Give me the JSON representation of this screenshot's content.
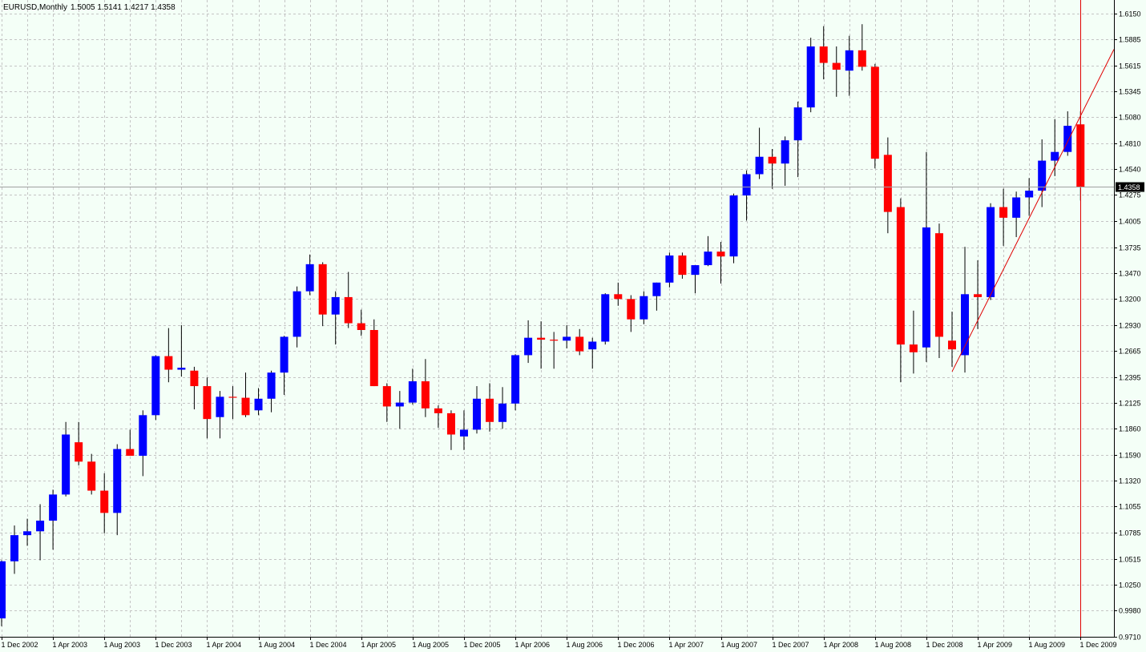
{
  "header": {
    "symbol": "EURUSD,Monthly",
    "ohlc": "1.5005 1.5141 1.4217 1.4358"
  },
  "price_label": "1.4358",
  "colors": {
    "background": "#f4fff7",
    "grid": "#c4c4c4",
    "bull": "#0000ff",
    "bear": "#ff0000",
    "wick": "#000000",
    "trendline": "#e00000",
    "marker_line": "#e00000",
    "price_box_bg": "#000000",
    "price_box_fg": "#ffffff"
  },
  "chart_data": {
    "type": "candlestick",
    "symbol": "EURUSD",
    "timeframe": "Monthly",
    "ylim": [
      0.971,
      1.629
    ],
    "grid": true,
    "y_ticks": [
      "1.6150",
      "1.5885",
      "1.5615",
      "1.5345",
      "1.5080",
      "1.4810",
      "1.4540",
      "1.4275",
      "1.4005",
      "1.3735",
      "1.3470",
      "1.3200",
      "1.2930",
      "1.2665",
      "1.2395",
      "1.2125",
      "1.1860",
      "1.1590",
      "1.1320",
      "1.1055",
      "1.0785",
      "1.0515",
      "1.0250",
      "0.9980",
      "0.9710"
    ],
    "x_labels": [
      "1 Dec 2002",
      "1 Apr 2003",
      "1 Aug 2003",
      "1 Dec 2003",
      "1 Apr 2004",
      "1 Aug 2004",
      "1 Dec 2004",
      "1 Apr 2005",
      "1 Aug 2005",
      "1 Dec 2005",
      "1 Apr 2006",
      "1 Aug 2006",
      "1 Dec 2006",
      "1 Apr 2007",
      "1 Aug 2007",
      "1 Dec 2007",
      "1 Apr 2008",
      "1 Aug 2008",
      "1 Dec 2008",
      "1 Apr 2009",
      "1 Aug 2009",
      "1 Dec 2009"
    ],
    "last_price": 1.4358,
    "candles": [
      {
        "d": "2002-12",
        "o": 0.99,
        "h": 1.05,
        "l": 0.982,
        "c": 1.049
      },
      {
        "d": "2003-01",
        "o": 1.049,
        "h": 1.086,
        "l": 1.036,
        "c": 1.076
      },
      {
        "d": "2003-02",
        "o": 1.076,
        "h": 1.093,
        "l": 1.065,
        "c": 1.08
      },
      {
        "d": "2003-03",
        "o": 1.08,
        "h": 1.108,
        "l": 1.05,
        "c": 1.091
      },
      {
        "d": "2003-04",
        "o": 1.091,
        "h": 1.123,
        "l": 1.061,
        "c": 1.118
      },
      {
        "d": "2003-05",
        "o": 1.118,
        "h": 1.193,
        "l": 1.116,
        "c": 1.18
      },
      {
        "d": "2003-06",
        "o": 1.172,
        "h": 1.193,
        "l": 1.148,
        "c": 1.152
      },
      {
        "d": "2003-07",
        "o": 1.152,
        "h": 1.16,
        "l": 1.118,
        "c": 1.122
      },
      {
        "d": "2003-08",
        "o": 1.122,
        "h": 1.14,
        "l": 1.078,
        "c": 1.099
      },
      {
        "d": "2003-09",
        "o": 1.099,
        "h": 1.17,
        "l": 1.076,
        "c": 1.165
      },
      {
        "d": "2003-10",
        "o": 1.165,
        "h": 1.185,
        "l": 1.158,
        "c": 1.158
      },
      {
        "d": "2003-11",
        "o": 1.158,
        "h": 1.205,
        "l": 1.137,
        "c": 1.2
      },
      {
        "d": "2003-12",
        "o": 1.2,
        "h": 1.262,
        "l": 1.195,
        "c": 1.261
      },
      {
        "d": "2004-01",
        "o": 1.261,
        "h": 1.29,
        "l": 1.234,
        "c": 1.247
      },
      {
        "d": "2004-02",
        "o": 1.247,
        "h": 1.293,
        "l": 1.24,
        "c": 1.249
      },
      {
        "d": "2004-03",
        "o": 1.246,
        "h": 1.25,
        "l": 1.206,
        "c": 1.23
      },
      {
        "d": "2004-04",
        "o": 1.23,
        "h": 1.239,
        "l": 1.176,
        "c": 1.196
      },
      {
        "d": "2004-05",
        "o": 1.198,
        "h": 1.225,
        "l": 1.176,
        "c": 1.219
      },
      {
        "d": "2004-06",
        "o": 1.219,
        "h": 1.23,
        "l": 1.196,
        "c": 1.218
      },
      {
        "d": "2004-07",
        "o": 1.218,
        "h": 1.244,
        "l": 1.198,
        "c": 1.2
      },
      {
        "d": "2004-08",
        "o": 1.205,
        "h": 1.228,
        "l": 1.2,
        "c": 1.217
      },
      {
        "d": "2004-09",
        "o": 1.217,
        "h": 1.246,
        "l": 1.203,
        "c": 1.244
      },
      {
        "d": "2004-10",
        "o": 1.244,
        "h": 1.282,
        "l": 1.221,
        "c": 1.281
      },
      {
        "d": "2004-11",
        "o": 1.281,
        "h": 1.333,
        "l": 1.27,
        "c": 1.328
      },
      {
        "d": "2004-12",
        "o": 1.328,
        "h": 1.366,
        "l": 1.324,
        "c": 1.356
      },
      {
        "d": "2005-01",
        "o": 1.356,
        "h": 1.358,
        "l": 1.292,
        "c": 1.304
      },
      {
        "d": "2005-02",
        "o": 1.304,
        "h": 1.328,
        "l": 1.273,
        "c": 1.322
      },
      {
        "d": "2005-03",
        "o": 1.322,
        "h": 1.348,
        "l": 1.29,
        "c": 1.295
      },
      {
        "d": "2005-04",
        "o": 1.295,
        "h": 1.309,
        "l": 1.282,
        "c": 1.288
      },
      {
        "d": "2005-05",
        "o": 1.288,
        "h": 1.299,
        "l": 1.23,
        "c": 1.23
      },
      {
        "d": "2005-06",
        "o": 1.23,
        "h": 1.233,
        "l": 1.193,
        "c": 1.209
      },
      {
        "d": "2005-07",
        "o": 1.209,
        "h": 1.225,
        "l": 1.186,
        "c": 1.213
      },
      {
        "d": "2005-08",
        "o": 1.213,
        "h": 1.248,
        "l": 1.211,
        "c": 1.235
      },
      {
        "d": "2005-09",
        "o": 1.235,
        "h": 1.258,
        "l": 1.198,
        "c": 1.207
      },
      {
        "d": "2005-10",
        "o": 1.207,
        "h": 1.21,
        "l": 1.187,
        "c": 1.202
      },
      {
        "d": "2005-11",
        "o": 1.202,
        "h": 1.205,
        "l": 1.164,
        "c": 1.18
      },
      {
        "d": "2005-12",
        "o": 1.178,
        "h": 1.205,
        "l": 1.164,
        "c": 1.185
      },
      {
        "d": "2006-01",
        "o": 1.185,
        "h": 1.23,
        "l": 1.181,
        "c": 1.217
      },
      {
        "d": "2006-02",
        "o": 1.217,
        "h": 1.233,
        "l": 1.183,
        "c": 1.193
      },
      {
        "d": "2006-03",
        "o": 1.193,
        "h": 1.229,
        "l": 1.186,
        "c": 1.212
      },
      {
        "d": "2006-04",
        "o": 1.212,
        "h": 1.263,
        "l": 1.205,
        "c": 1.262
      },
      {
        "d": "2006-05",
        "o": 1.262,
        "h": 1.298,
        "l": 1.254,
        "c": 1.28
      },
      {
        "d": "2006-06",
        "o": 1.28,
        "h": 1.297,
        "l": 1.248,
        "c": 1.278
      },
      {
        "d": "2006-07",
        "o": 1.278,
        "h": 1.286,
        "l": 1.248,
        "c": 1.277
      },
      {
        "d": "2006-08",
        "o": 1.277,
        "h": 1.293,
        "l": 1.269,
        "c": 1.281
      },
      {
        "d": "2006-09",
        "o": 1.281,
        "h": 1.289,
        "l": 1.262,
        "c": 1.266
      },
      {
        "d": "2006-10",
        "o": 1.268,
        "h": 1.28,
        "l": 1.248,
        "c": 1.276
      },
      {
        "d": "2006-11",
        "o": 1.276,
        "h": 1.326,
        "l": 1.273,
        "c": 1.325
      },
      {
        "d": "2006-12",
        "o": 1.325,
        "h": 1.337,
        "l": 1.313,
        "c": 1.32
      },
      {
        "d": "2007-01",
        "o": 1.32,
        "h": 1.324,
        "l": 1.286,
        "c": 1.299
      },
      {
        "d": "2007-02",
        "o": 1.299,
        "h": 1.328,
        "l": 1.294,
        "c": 1.323
      },
      {
        "d": "2007-03",
        "o": 1.323,
        "h": 1.337,
        "l": 1.308,
        "c": 1.337
      },
      {
        "d": "2007-04",
        "o": 1.337,
        "h": 1.368,
        "l": 1.332,
        "c": 1.365
      },
      {
        "d": "2007-05",
        "o": 1.365,
        "h": 1.368,
        "l": 1.341,
        "c": 1.345
      },
      {
        "d": "2007-06",
        "o": 1.345,
        "h": 1.355,
        "l": 1.326,
        "c": 1.355
      },
      {
        "d": "2007-07",
        "o": 1.355,
        "h": 1.385,
        "l": 1.354,
        "c": 1.369
      },
      {
        "d": "2007-08",
        "o": 1.369,
        "h": 1.379,
        "l": 1.336,
        "c": 1.364
      },
      {
        "d": "2007-09",
        "o": 1.364,
        "h": 1.429,
        "l": 1.357,
        "c": 1.427
      },
      {
        "d": "2007-10",
        "o": 1.427,
        "h": 1.453,
        "l": 1.401,
        "c": 1.449
      },
      {
        "d": "2007-11",
        "o": 1.449,
        "h": 1.497,
        "l": 1.444,
        "c": 1.467
      },
      {
        "d": "2007-12",
        "o": 1.467,
        "h": 1.475,
        "l": 1.434,
        "c": 1.46
      },
      {
        "d": "2008-01",
        "o": 1.46,
        "h": 1.488,
        "l": 1.437,
        "c": 1.484
      },
      {
        "d": "2008-02",
        "o": 1.484,
        "h": 1.524,
        "l": 1.446,
        "c": 1.518
      },
      {
        "d": "2008-03",
        "o": 1.518,
        "h": 1.59,
        "l": 1.513,
        "c": 1.581
      },
      {
        "d": "2008-04",
        "o": 1.581,
        "h": 1.602,
        "l": 1.547,
        "c": 1.564
      },
      {
        "d": "2008-05",
        "o": 1.564,
        "h": 1.581,
        "l": 1.529,
        "c": 1.557
      },
      {
        "d": "2008-06",
        "o": 1.556,
        "h": 1.592,
        "l": 1.53,
        "c": 1.577
      },
      {
        "d": "2008-07",
        "o": 1.577,
        "h": 1.604,
        "l": 1.556,
        "c": 1.56
      },
      {
        "d": "2008-08",
        "o": 1.56,
        "h": 1.563,
        "l": 1.455,
        "c": 1.465
      },
      {
        "d": "2008-09",
        "o": 1.469,
        "h": 1.487,
        "l": 1.388,
        "c": 1.41
      },
      {
        "d": "2008-10",
        "o": 1.415,
        "h": 1.424,
        "l": 1.234,
        "c": 1.273
      },
      {
        "d": "2008-11",
        "o": 1.273,
        "h": 1.308,
        "l": 1.243,
        "c": 1.265
      },
      {
        "d": "2008-12",
        "o": 1.27,
        "h": 1.472,
        "l": 1.255,
        "c": 1.394
      },
      {
        "d": "2009-01",
        "o": 1.388,
        "h": 1.398,
        "l": 1.259,
        "c": 1.281
      },
      {
        "d": "2009-02",
        "o": 1.277,
        "h": 1.307,
        "l": 1.25,
        "c": 1.268
      },
      {
        "d": "2009-03",
        "o": 1.262,
        "h": 1.374,
        "l": 1.244,
        "c": 1.325
      },
      {
        "d": "2009-04",
        "o": 1.325,
        "h": 1.36,
        "l": 1.289,
        "c": 1.322
      },
      {
        "d": "2009-05",
        "o": 1.322,
        "h": 1.419,
        "l": 1.319,
        "c": 1.415
      },
      {
        "d": "2009-06",
        "o": 1.415,
        "h": 1.434,
        "l": 1.375,
        "c": 1.404
      },
      {
        "d": "2009-07",
        "o": 1.404,
        "h": 1.431,
        "l": 1.384,
        "c": 1.425
      },
      {
        "d": "2009-08",
        "o": 1.425,
        "h": 1.445,
        "l": 1.406,
        "c": 1.432
      },
      {
        "d": "2009-09",
        "o": 1.432,
        "h": 1.485,
        "l": 1.415,
        "c": 1.463
      },
      {
        "d": "2009-10",
        "o": 1.463,
        "h": 1.506,
        "l": 1.447,
        "c": 1.472
      },
      {
        "d": "2009-11",
        "o": 1.472,
        "h": 1.514,
        "l": 1.468,
        "c": 1.499
      },
      {
        "d": "2009-12",
        "o": 1.5005,
        "h": 1.5141,
        "l": 1.4217,
        "c": 1.4358
      }
    ],
    "trendline": {
      "from": {
        "d": "2009-02",
        "price": 1.245
      },
      "to_price_at_right_edge": 1.578
    },
    "marker": {
      "d": "2009-12"
    }
  }
}
